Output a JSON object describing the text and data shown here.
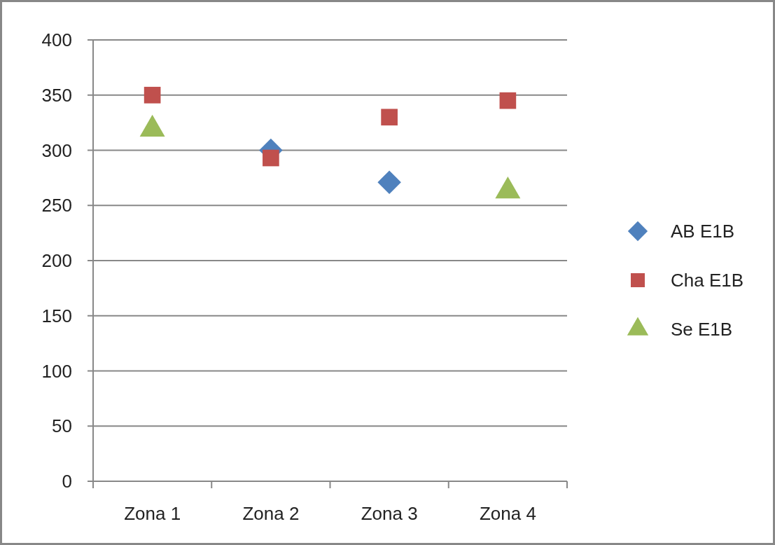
{
  "chart_data": {
    "type": "scatter",
    "categories": [
      "Zona 1",
      "Zona 2",
      "Zona 3",
      "Zona 4"
    ],
    "series": [
      {
        "name": "AB E1B",
        "color": "#4f81bd",
        "marker": "diamond",
        "values": [
          null,
          300,
          271,
          null
        ]
      },
      {
        "name": "Cha E1B",
        "color": "#c0504d",
        "marker": "square",
        "values": [
          350,
          293,
          330,
          345
        ]
      },
      {
        "name": "Se E1B",
        "color": "#9bbb59",
        "marker": "triangle",
        "values": [
          319,
          null,
          null,
          263
        ]
      }
    ],
    "ylim": [
      0,
      400
    ],
    "yticks": [
      0,
      50,
      100,
      150,
      200,
      250,
      300,
      350,
      400
    ],
    "grid": "y",
    "legend": "right"
  }
}
